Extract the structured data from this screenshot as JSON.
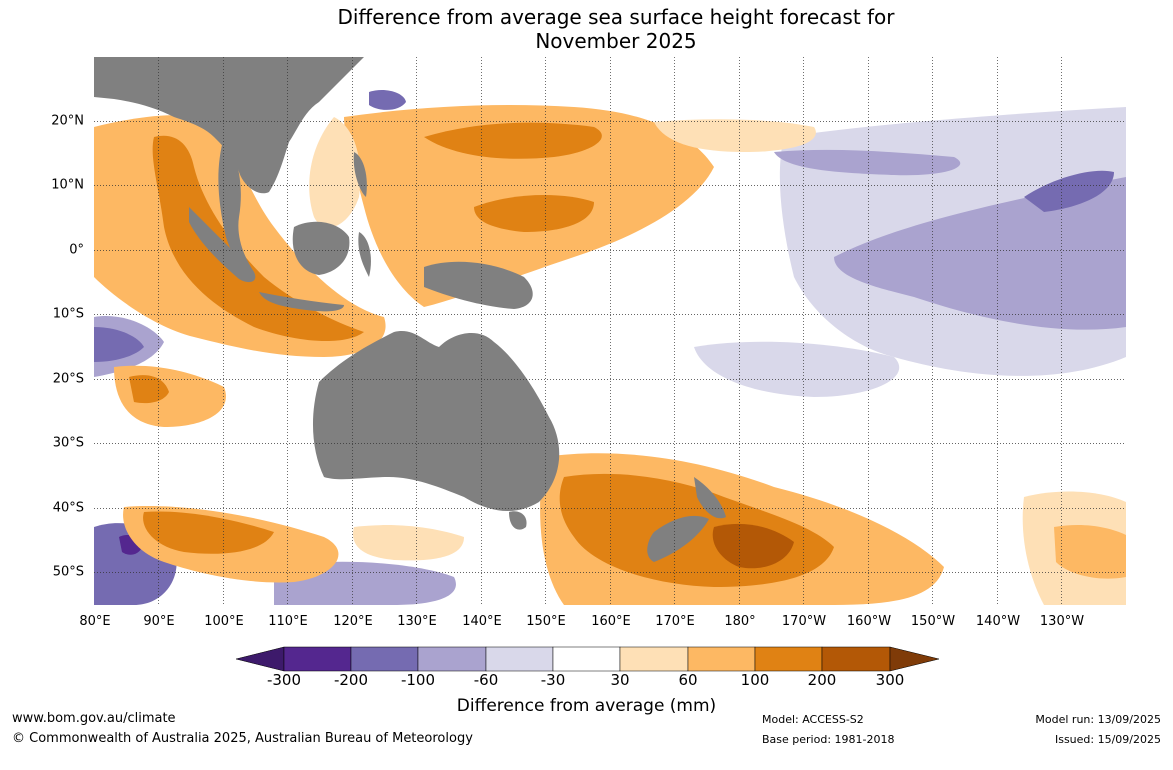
{
  "title_line1": "Difference from average sea surface height forecast for",
  "title_line2": "November 2025",
  "latitude_labels": [
    "20°N",
    "10°N",
    "0°",
    "10°S",
    "20°S",
    "30°S",
    "40°S",
    "50°S"
  ],
  "longitude_labels": [
    "80°E",
    "90°E",
    "100°E",
    "110°E",
    "120°E",
    "130°E",
    "140°E",
    "150°E",
    "160°E",
    "170°E",
    "180°",
    "170°W",
    "160°W",
    "150°W",
    "140°W",
    "130°W"
  ],
  "colorbar": {
    "ticks": [
      "-300",
      "-200",
      "-100",
      "-60",
      "-30",
      "30",
      "60",
      "100",
      "200",
      "300"
    ],
    "colors": [
      "#3d1a6b",
      "#54278f",
      "#756bb1",
      "#aaa3cf",
      "#d9d8ea",
      "#ffffff",
      "#fee0b6",
      "#fdb863",
      "#e08214",
      "#b35806",
      "#7f3b08"
    ],
    "title": "Difference from average (mm)"
  },
  "land_color": "#808080",
  "footer": {
    "website": "www.bom.gov.au/climate",
    "copyright": "© Commonwealth of Australia 2025, Australian Bureau of Meteorology",
    "model": "Model: ACCESS-S2",
    "base_period": "Base period: 1981-2018",
    "model_run": "Model run: 13/09/2025",
    "issued": "Issued: 15/09/2025"
  }
}
